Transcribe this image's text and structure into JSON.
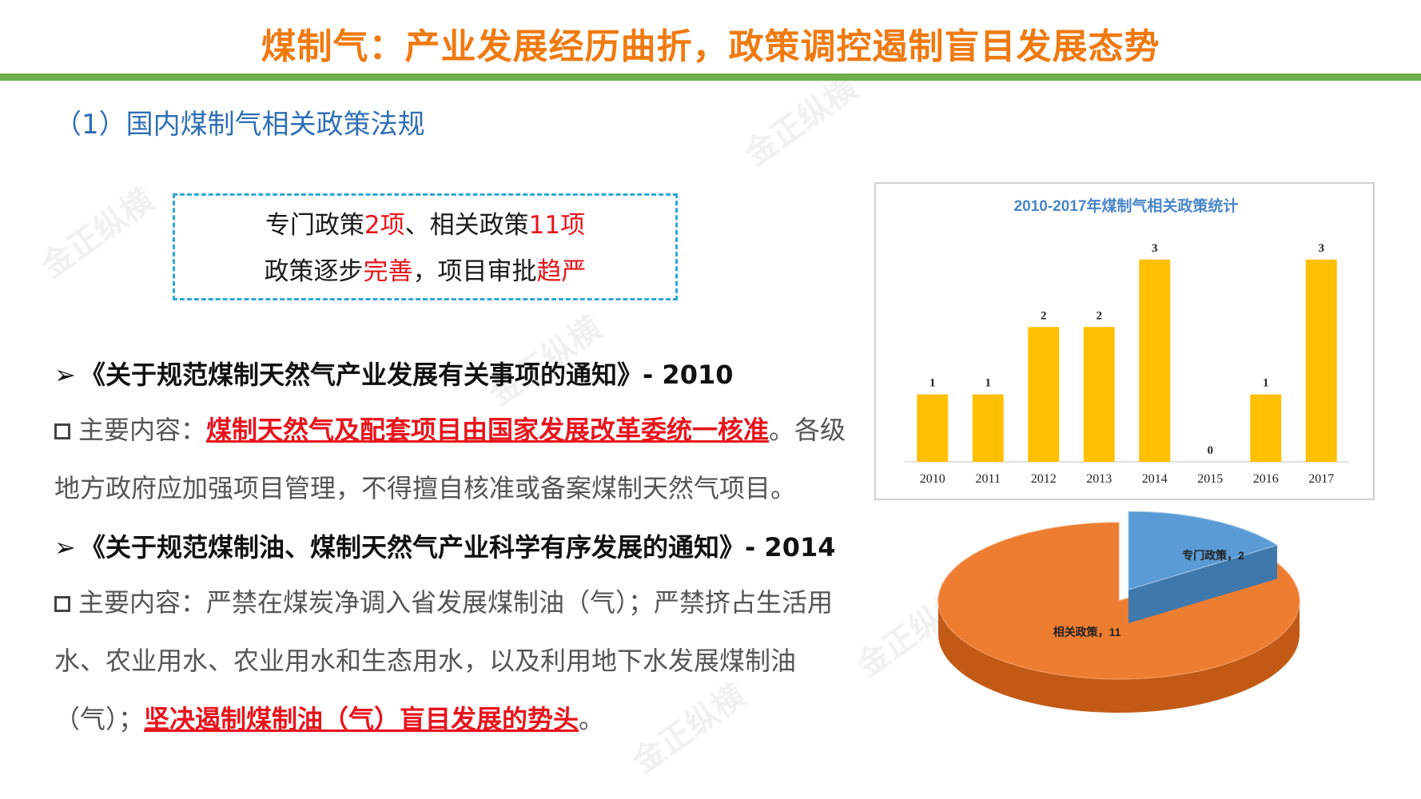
{
  "title": "煤制气：产业发展经历曲折，政策调控遏制盲目发展态势",
  "section_title": "（1）国内煤制气相关政策法规",
  "callout": {
    "line1": {
      "prefix": "专门政策",
      "count1": "2项",
      "mid": "、相关政策",
      "count2": "11项"
    },
    "line2": {
      "prefix": "政策逐步",
      "hl1": "完善",
      "mid": "，项目审批",
      "hl2": "趋严"
    }
  },
  "items": [
    {
      "title": "《关于规范煤制天然气产业发展有关事项的通知》- 2010",
      "label": "主要内容：",
      "emphasis": "煤制天然气及配套项目由国家发展改革委统一核准",
      "rest": "。各级地方政府应加强项目管理，不得擅自核准或备案煤制天然气项目。"
    },
    {
      "title": "《关于规范煤制油、煤制天然气产业科学有序发展的通知》- 2014",
      "label": "主要内容：",
      "text": "严禁在煤炭净调入省发展煤制油（气）；严禁挤占生活用水、农业用水、农业用水和生态用水，以及利用地下水发展煤制油（气）；",
      "emphasis": "坚决遏制煤制油（气）盲目发展的势头",
      "end": "。"
    }
  ],
  "watermark_text": "金正纵横",
  "colors": {
    "title": "#f07a10",
    "rule": "#6ab04c",
    "bar": "#ffc000",
    "pie_main": "#ed7d31",
    "pie_small": "#5b9bd5"
  },
  "chart_data": [
    {
      "type": "bar",
      "title": "2010-2017年煤制气相关政策统计",
      "categories": [
        "2010",
        "2011",
        "2012",
        "2013",
        "2014",
        "2015",
        "2016",
        "2017"
      ],
      "values": [
        1,
        1,
        2,
        2,
        3,
        0,
        1,
        3
      ],
      "ylim": [
        0,
        3.2
      ],
      "grid": false
    },
    {
      "type": "pie",
      "labels": [
        "专门政策",
        "相关政策"
      ],
      "values": [
        2,
        11
      ],
      "data_labels": [
        "专门政策，2",
        "相关政策，11"
      ]
    }
  ]
}
